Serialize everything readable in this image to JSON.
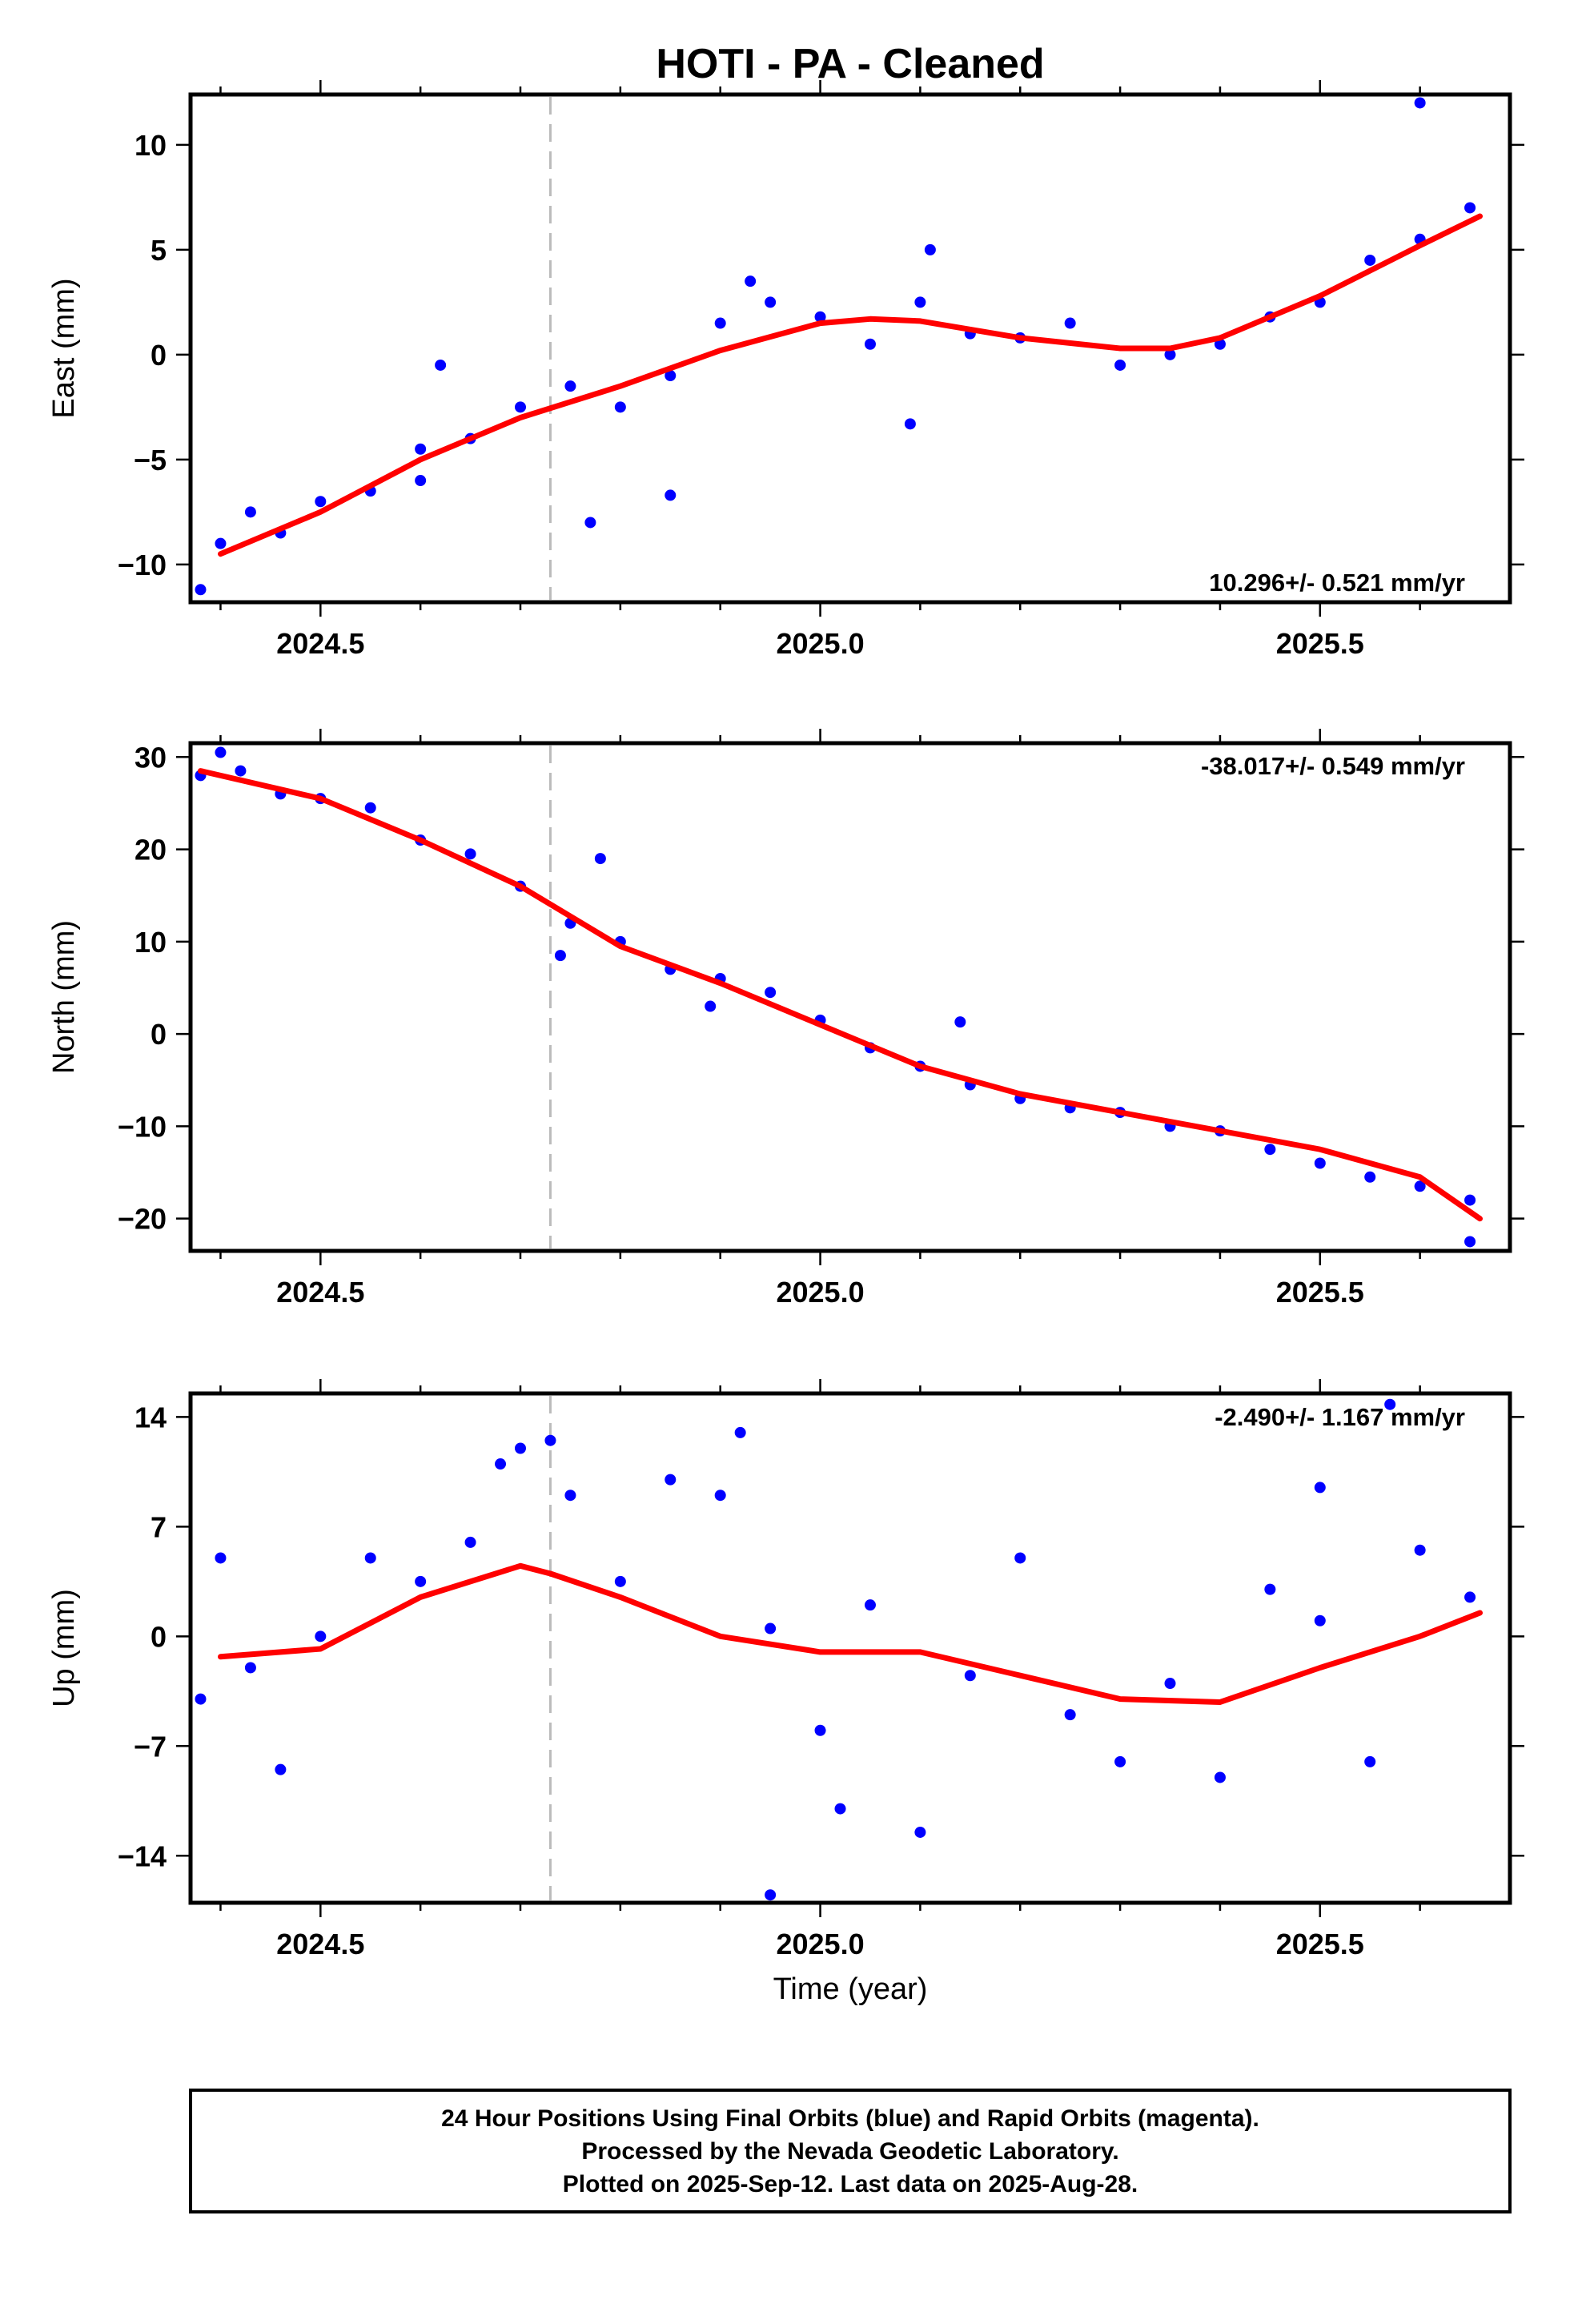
{
  "title": "HOTI  - PA - Cleaned",
  "xlabel": "Time (year)",
  "colors": {
    "final_orbits": "#0000ff",
    "trend": "#ff0000",
    "event_line": "#bbbbbb",
    "frame": "#000000"
  },
  "footer": {
    "line1": "24 Hour Positions Using Final Orbits (blue) and Rapid Orbits (magenta).",
    "line2": "Processed by the Nevada Geodetic Laboratory.",
    "line3": "Plotted on 2025-Sep-12. Last data on 2025-Aug-28."
  },
  "chart_data": [
    {
      "type": "scatter",
      "component": "east",
      "ylabel": "East (mm)",
      "rate_label": "10.296+/- 0.521 mm/yr",
      "xlim": [
        2024.37,
        2025.69
      ],
      "ylim": [
        -11.8,
        12.4
      ],
      "xticks": [
        2024.5,
        2025.0,
        2025.5
      ],
      "xtick_labels": [
        "2024.5",
        "2025.0",
        "2025.5"
      ],
      "yticks": [
        -10,
        -5,
        0,
        5,
        10
      ],
      "ytick_labels": [
        "−10",
        "−5",
        "0",
        "5",
        "10"
      ],
      "event_line_x": 2024.73,
      "trend": {
        "x": [
          2024.4,
          2024.5,
          2024.6,
          2024.7,
          2024.8,
          2024.9,
          2025.0,
          2025.05,
          2025.1,
          2025.2,
          2025.3,
          2025.35,
          2025.4,
          2025.5,
          2025.6,
          2025.66
        ],
        "y": [
          -9.5,
          -7.5,
          -5.0,
          -3.0,
          -1.5,
          0.2,
          1.5,
          1.7,
          1.6,
          0.8,
          0.3,
          0.3,
          0.8,
          2.8,
          5.2,
          6.6
        ]
      },
      "points": {
        "x": [
          2024.38,
          2024.4,
          2024.43,
          2024.46,
          2024.5,
          2024.55,
          2024.6,
          2024.65,
          2024.7,
          2024.75,
          2024.8,
          2024.85,
          2024.9,
          2024.95,
          2025.0,
          2025.05,
          2025.1,
          2025.15,
          2025.2,
          2025.25,
          2025.3,
          2025.35,
          2025.4,
          2025.45,
          2025.5,
          2025.55,
          2025.6,
          2025.65,
          2024.62,
          2024.77,
          2024.85,
          2024.93,
          2025.09,
          2025.11,
          2024.6,
          2025.6
        ],
        "y": [
          -11.2,
          -9.0,
          -7.5,
          -8.5,
          -7.0,
          -6.5,
          -4.5,
          -4.0,
          -2.5,
          -1.5,
          -2.5,
          -1.0,
          1.5,
          2.5,
          1.8,
          0.5,
          2.5,
          1.0,
          0.8,
          1.5,
          -0.5,
          0.0,
          0.5,
          1.8,
          2.5,
          4.5,
          5.5,
          7.0,
          -0.5,
          -8.0,
          -6.7,
          3.5,
          -3.3,
          5.0,
          -6.0,
          12.0
        ]
      }
    },
    {
      "type": "scatter",
      "component": "north",
      "ylabel": "North (mm)",
      "rate_label": "-38.017+/- 0.549 mm/yr",
      "xlim": [
        2024.37,
        2025.69
      ],
      "ylim": [
        -23.5,
        31.5
      ],
      "xticks": [
        2024.5,
        2025.0,
        2025.5
      ],
      "xtick_labels": [
        "2024.5",
        "2025.0",
        "2025.5"
      ],
      "yticks": [
        -20,
        -10,
        0,
        10,
        20,
        30
      ],
      "ytick_labels": [
        "−20",
        "−10",
        "0",
        "10",
        "20",
        "30"
      ],
      "event_line_x": 2024.73,
      "trend": {
        "x": [
          2024.38,
          2024.5,
          2024.6,
          2024.7,
          2024.8,
          2024.9,
          2025.0,
          2025.1,
          2025.2,
          2025.3,
          2025.4,
          2025.5,
          2025.6,
          2025.66
        ],
        "y": [
          28.5,
          25.5,
          21.0,
          16.0,
          9.5,
          5.5,
          1.0,
          -3.5,
          -6.5,
          -8.5,
          -10.5,
          -12.5,
          -15.5,
          -20.0
        ]
      },
      "points": {
        "x": [
          2024.38,
          2024.42,
          2024.46,
          2024.5,
          2024.55,
          2024.6,
          2024.65,
          2024.7,
          2024.75,
          2024.8,
          2024.85,
          2024.9,
          2024.95,
          2025.0,
          2025.05,
          2025.1,
          2025.15,
          2025.2,
          2025.25,
          2025.3,
          2025.35,
          2025.4,
          2025.45,
          2025.5,
          2025.55,
          2025.6,
          2025.65,
          2024.4,
          2024.78,
          2024.74,
          2024.89,
          2025.14,
          2025.65
        ],
        "y": [
          28.0,
          28.5,
          26.0,
          25.5,
          24.5,
          21.0,
          19.5,
          16.0,
          12.0,
          10.0,
          7.0,
          6.0,
          4.5,
          1.5,
          -1.5,
          -3.5,
          -5.5,
          -7.0,
          -8.0,
          -8.5,
          -10.0,
          -10.5,
          -12.5,
          -14.0,
          -15.5,
          -16.5,
          -18.0,
          30.5,
          19.0,
          8.5,
          3.0,
          1.3,
          -22.5
        ]
      }
    },
    {
      "type": "scatter",
      "component": "up",
      "ylabel": "Up (mm)",
      "rate_label": "-2.490+/- 1.167 mm/yr",
      "xlim": [
        2024.37,
        2025.69
      ],
      "ylim": [
        -17,
        15.5
      ],
      "xticks": [
        2024.5,
        2025.0,
        2025.5
      ],
      "xtick_labels": [
        "2024.5",
        "2025.0",
        "2025.5"
      ],
      "yticks": [
        -14,
        -7,
        0,
        7,
        14
      ],
      "ytick_labels": [
        "−14",
        "−7",
        "0",
        "7",
        "14"
      ],
      "event_line_x": 2024.73,
      "trend": {
        "x": [
          2024.4,
          2024.5,
          2024.6,
          2024.7,
          2024.73,
          2024.8,
          2024.9,
          2025.0,
          2025.1,
          2025.2,
          2025.3,
          2025.4,
          2025.5,
          2025.6,
          2025.66
        ],
        "y": [
          -1.3,
          -0.8,
          2.5,
          4.5,
          4.0,
          2.5,
          0.0,
          -1.0,
          -1.0,
          -2.5,
          -4.0,
          -4.2,
          -2.0,
          0.0,
          1.5
        ]
      },
      "points": {
        "x": [
          2024.38,
          2024.4,
          2024.43,
          2024.46,
          2024.5,
          2024.55,
          2024.6,
          2024.65,
          2024.7,
          2024.75,
          2024.8,
          2024.85,
          2024.9,
          2024.95,
          2025.0,
          2025.05,
          2025.1,
          2025.15,
          2025.2,
          2025.25,
          2025.3,
          2025.35,
          2025.4,
          2025.45,
          2025.5,
          2025.55,
          2025.6,
          2025.65,
          2024.68,
          2024.73,
          2024.92,
          2024.95,
          2025.02,
          2025.5,
          2025.57
        ],
        "y": [
          -4.0,
          5.0,
          -2.0,
          -8.5,
          0.0,
          5.0,
          3.5,
          6.0,
          12.0,
          9.0,
          3.5,
          10.0,
          9.0,
          0.5,
          -6.0,
          2.0,
          -12.5,
          -2.5,
          5.0,
          -5.0,
          -8.0,
          -3.0,
          -9.0,
          3.0,
          1.0,
          -8.0,
          5.5,
          2.5,
          11.0,
          12.5,
          13.0,
          -16.5,
          -11.0,
          9.5,
          14.8
        ]
      }
    }
  ]
}
